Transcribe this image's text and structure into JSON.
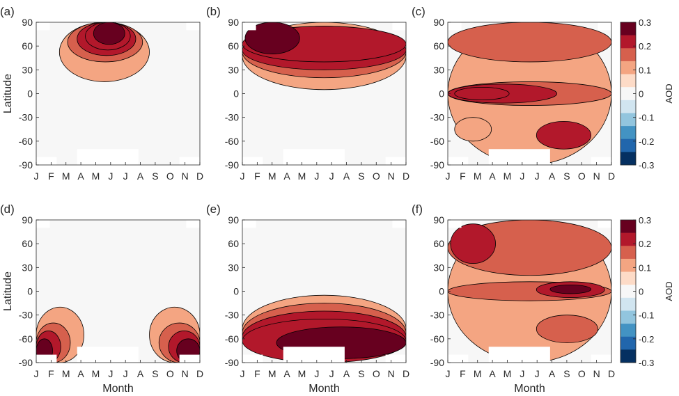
{
  "chart_data": {
    "type": "heatmap",
    "months": [
      "J",
      "F",
      "M",
      "A",
      "M",
      "J",
      "J",
      "A",
      "S",
      "O",
      "N",
      "D"
    ],
    "lat_ticks": [
      "90",
      "60",
      "30",
      "0",
      "-30",
      "-60",
      "-90"
    ],
    "lat_range": [
      -90,
      90
    ],
    "xlabel": "Month",
    "ylabel": "Latitude",
    "colorbar": {
      "label": "AOD",
      "ticks": [
        "0.3",
        "0.2",
        "0.1",
        "0",
        "-0.1",
        "-0.2",
        "-0.3"
      ],
      "colors": [
        "#67001f",
        "#b2182b",
        "#d6604d",
        "#f4a582",
        "#fddbc7",
        "#f7f7f7",
        "#d1e5f0",
        "#92c5de",
        "#4393c3",
        "#2166ac",
        "#053061"
      ]
    },
    "panels": [
      {
        "label": "(a)",
        "bands": [
          {
            "lat": [
              15,
              90
            ],
            "months": [
              1.7,
              8.3
            ],
            "level": 0.05
          },
          {
            "lat": [
              40,
              90
            ],
            "months": [
              2.3,
              7.8
            ],
            "level": 0.1
          },
          {
            "lat": [
              48,
              90
            ],
            "months": [
              3.0,
              7.3
            ],
            "level": 0.15
          },
          {
            "lat": [
              55,
              90
            ],
            "months": [
              3.6,
              6.9
            ],
            "level": 0.2
          },
          {
            "lat": [
              62,
              90
            ],
            "months": [
              4.2,
              6.5
            ],
            "level": 0.3
          }
        ]
      },
      {
        "label": "(b)",
        "bands": [
          {
            "lat": [
              5,
              90
            ],
            "months": [
              0,
              12
            ],
            "level": 0.05
          },
          {
            "lat": [
              20,
              85
            ],
            "months": [
              0,
              12
            ],
            "level": 0.1
          },
          {
            "lat": [
              30,
              80
            ],
            "months": [
              0,
              12
            ],
            "level": 0.15
          },
          {
            "lat": [
              40,
              85
            ],
            "months": [
              0,
              12
            ],
            "level": 0.2
          },
          {
            "lat": [
              50,
              90
            ],
            "months": [
              0.2,
              4.2
            ],
            "level": 0.3
          }
        ]
      },
      {
        "label": "(c)",
        "bands": [
          {
            "lat": [
              -90,
              90
            ],
            "months": [
              0,
              12
            ],
            "level": 0.05
          },
          {
            "lat": [
              40,
              90
            ],
            "months": [
              0,
              12
            ],
            "level": 0.1
          },
          {
            "lat": [
              -15,
              15
            ],
            "months": [
              0,
              12
            ],
            "level": 0.1
          },
          {
            "lat": [
              -12,
              12
            ],
            "months": [
              0,
              8
            ],
            "level": 0.15
          },
          {
            "lat": [
              -8,
              8
            ],
            "months": [
              0.5,
              4.5
            ],
            "level": 0.2
          },
          {
            "lat": [
              -35,
              -70
            ],
            "months": [
              6.5,
              10.5
            ],
            "level": 0.15
          },
          {
            "lat": [
              -30,
              -60
            ],
            "months": [
              0.5,
              3.2
            ],
            "level": 0.05
          }
        ]
      },
      {
        "label": "(d)",
        "bands": [
          {
            "lat": [
              -90,
              -20
            ],
            "months": [
              0,
              3.5
            ],
            "level": 0.05
          },
          {
            "lat": [
              -90,
              -20
            ],
            "months": [
              8.3,
              12
            ],
            "level": 0.05
          },
          {
            "lat": [
              -90,
              -40
            ],
            "months": [
              0,
              2.5
            ],
            "level": 0.1
          },
          {
            "lat": [
              -90,
              -40
            ],
            "months": [
              9.0,
              12
            ],
            "level": 0.1
          },
          {
            "lat": [
              -90,
              -50
            ],
            "months": [
              0,
              1.8
            ],
            "level": 0.2
          },
          {
            "lat": [
              -90,
              -50
            ],
            "months": [
              9.7,
              12
            ],
            "level": 0.2
          },
          {
            "lat": [
              -90,
              -60
            ],
            "months": [
              0,
              1.2
            ],
            "level": 0.3
          },
          {
            "lat": [
              -90,
              -60
            ],
            "months": [
              10.3,
              12
            ],
            "level": 0.3
          }
        ]
      },
      {
        "label": "(e)",
        "bands": [
          {
            "lat": [
              -90,
              -5
            ],
            "months": [
              0,
              12
            ],
            "level": 0.05
          },
          {
            "lat": [
              -90,
              -15
            ],
            "months": [
              0,
              12
            ],
            "level": 0.1
          },
          {
            "lat": [
              -90,
              -25
            ],
            "months": [
              0,
              12
            ],
            "level": 0.15
          },
          {
            "lat": [
              -90,
              -35
            ],
            "months": [
              0,
              12
            ],
            "level": 0.2
          },
          {
            "lat": [
              -85,
              -45
            ],
            "months": [
              2.5,
              12
            ],
            "level": 0.3
          }
        ]
      },
      {
        "label": "(f)",
        "bands": [
          {
            "lat": [
              -90,
              90
            ],
            "months": [
              0,
              12
            ],
            "level": 0.05
          },
          {
            "lat": [
              20,
              90
            ],
            "months": [
              0,
              12
            ],
            "level": 0.1
          },
          {
            "lat": [
              -12,
              12
            ],
            "months": [
              0,
              12
            ],
            "level": 0.1
          },
          {
            "lat": [
              35,
              85
            ],
            "months": [
              0.2,
              3.5
            ],
            "level": 0.2
          },
          {
            "lat": [
              -8,
              12
            ],
            "months": [
              6.5,
              11.5
            ],
            "level": 0.2
          },
          {
            "lat": [
              -3,
              8
            ],
            "months": [
              7.5,
              10.5
            ],
            "level": 0.3
          },
          {
            "lat": [
              -30,
              -65
            ],
            "months": [
              6.5,
              11
            ],
            "level": 0.1
          }
        ]
      }
    ]
  }
}
